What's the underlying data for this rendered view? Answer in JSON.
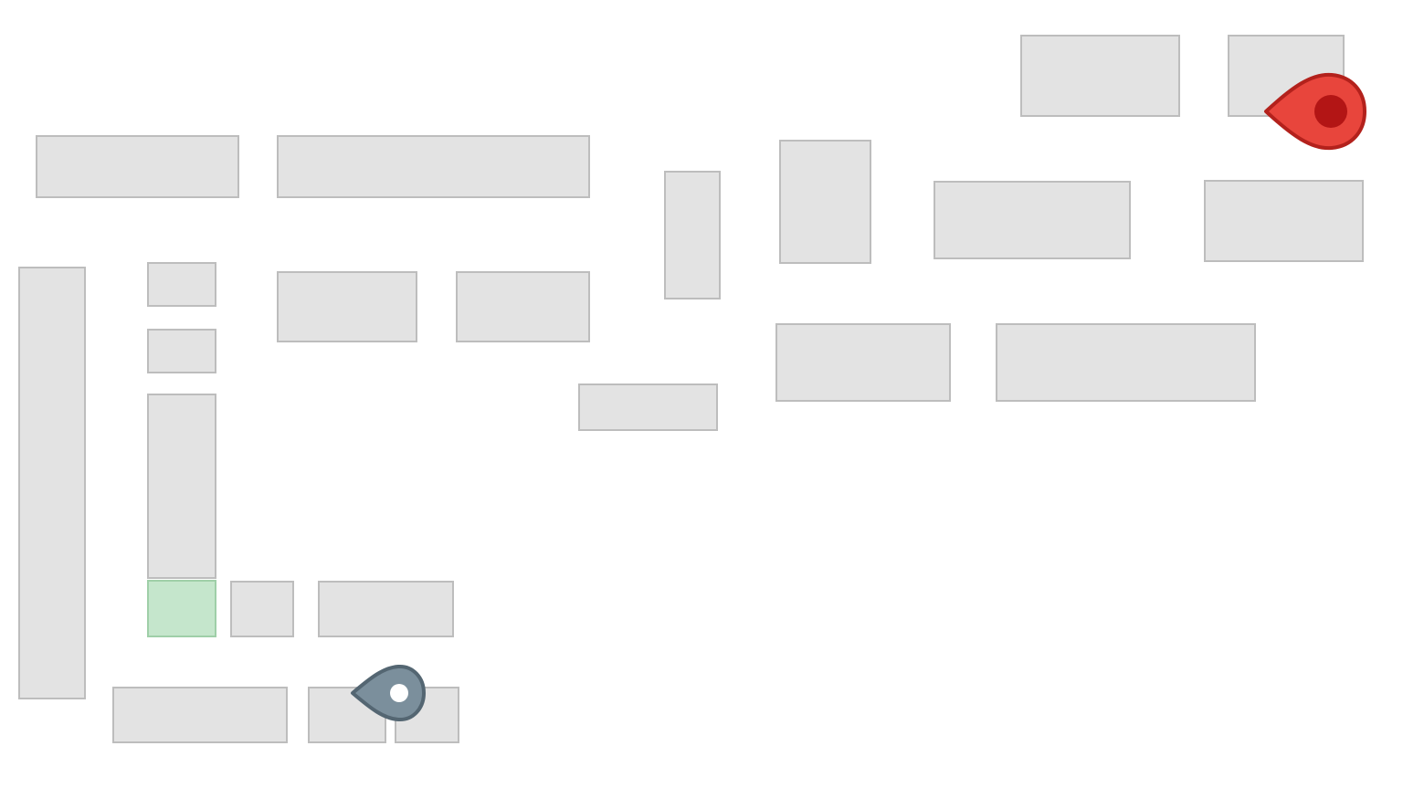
{
  "map": {
    "style": {
      "background": "#ffffff",
      "block_fill": "#e3e3e3",
      "block_stroke": "#bdbdbd",
      "highlight_fill": "#c5e6cc",
      "highlight_stroke": "#9fcfa8"
    },
    "markers": [
      {
        "name": "destination-pin-icon",
        "color": "#e8453c",
        "stroke": "#b3211c",
        "center": "#b31515"
      },
      {
        "name": "origin-pin-icon",
        "color": "#7b8f9c",
        "stroke": "#546672",
        "center": "#ffffff"
      }
    ]
  }
}
